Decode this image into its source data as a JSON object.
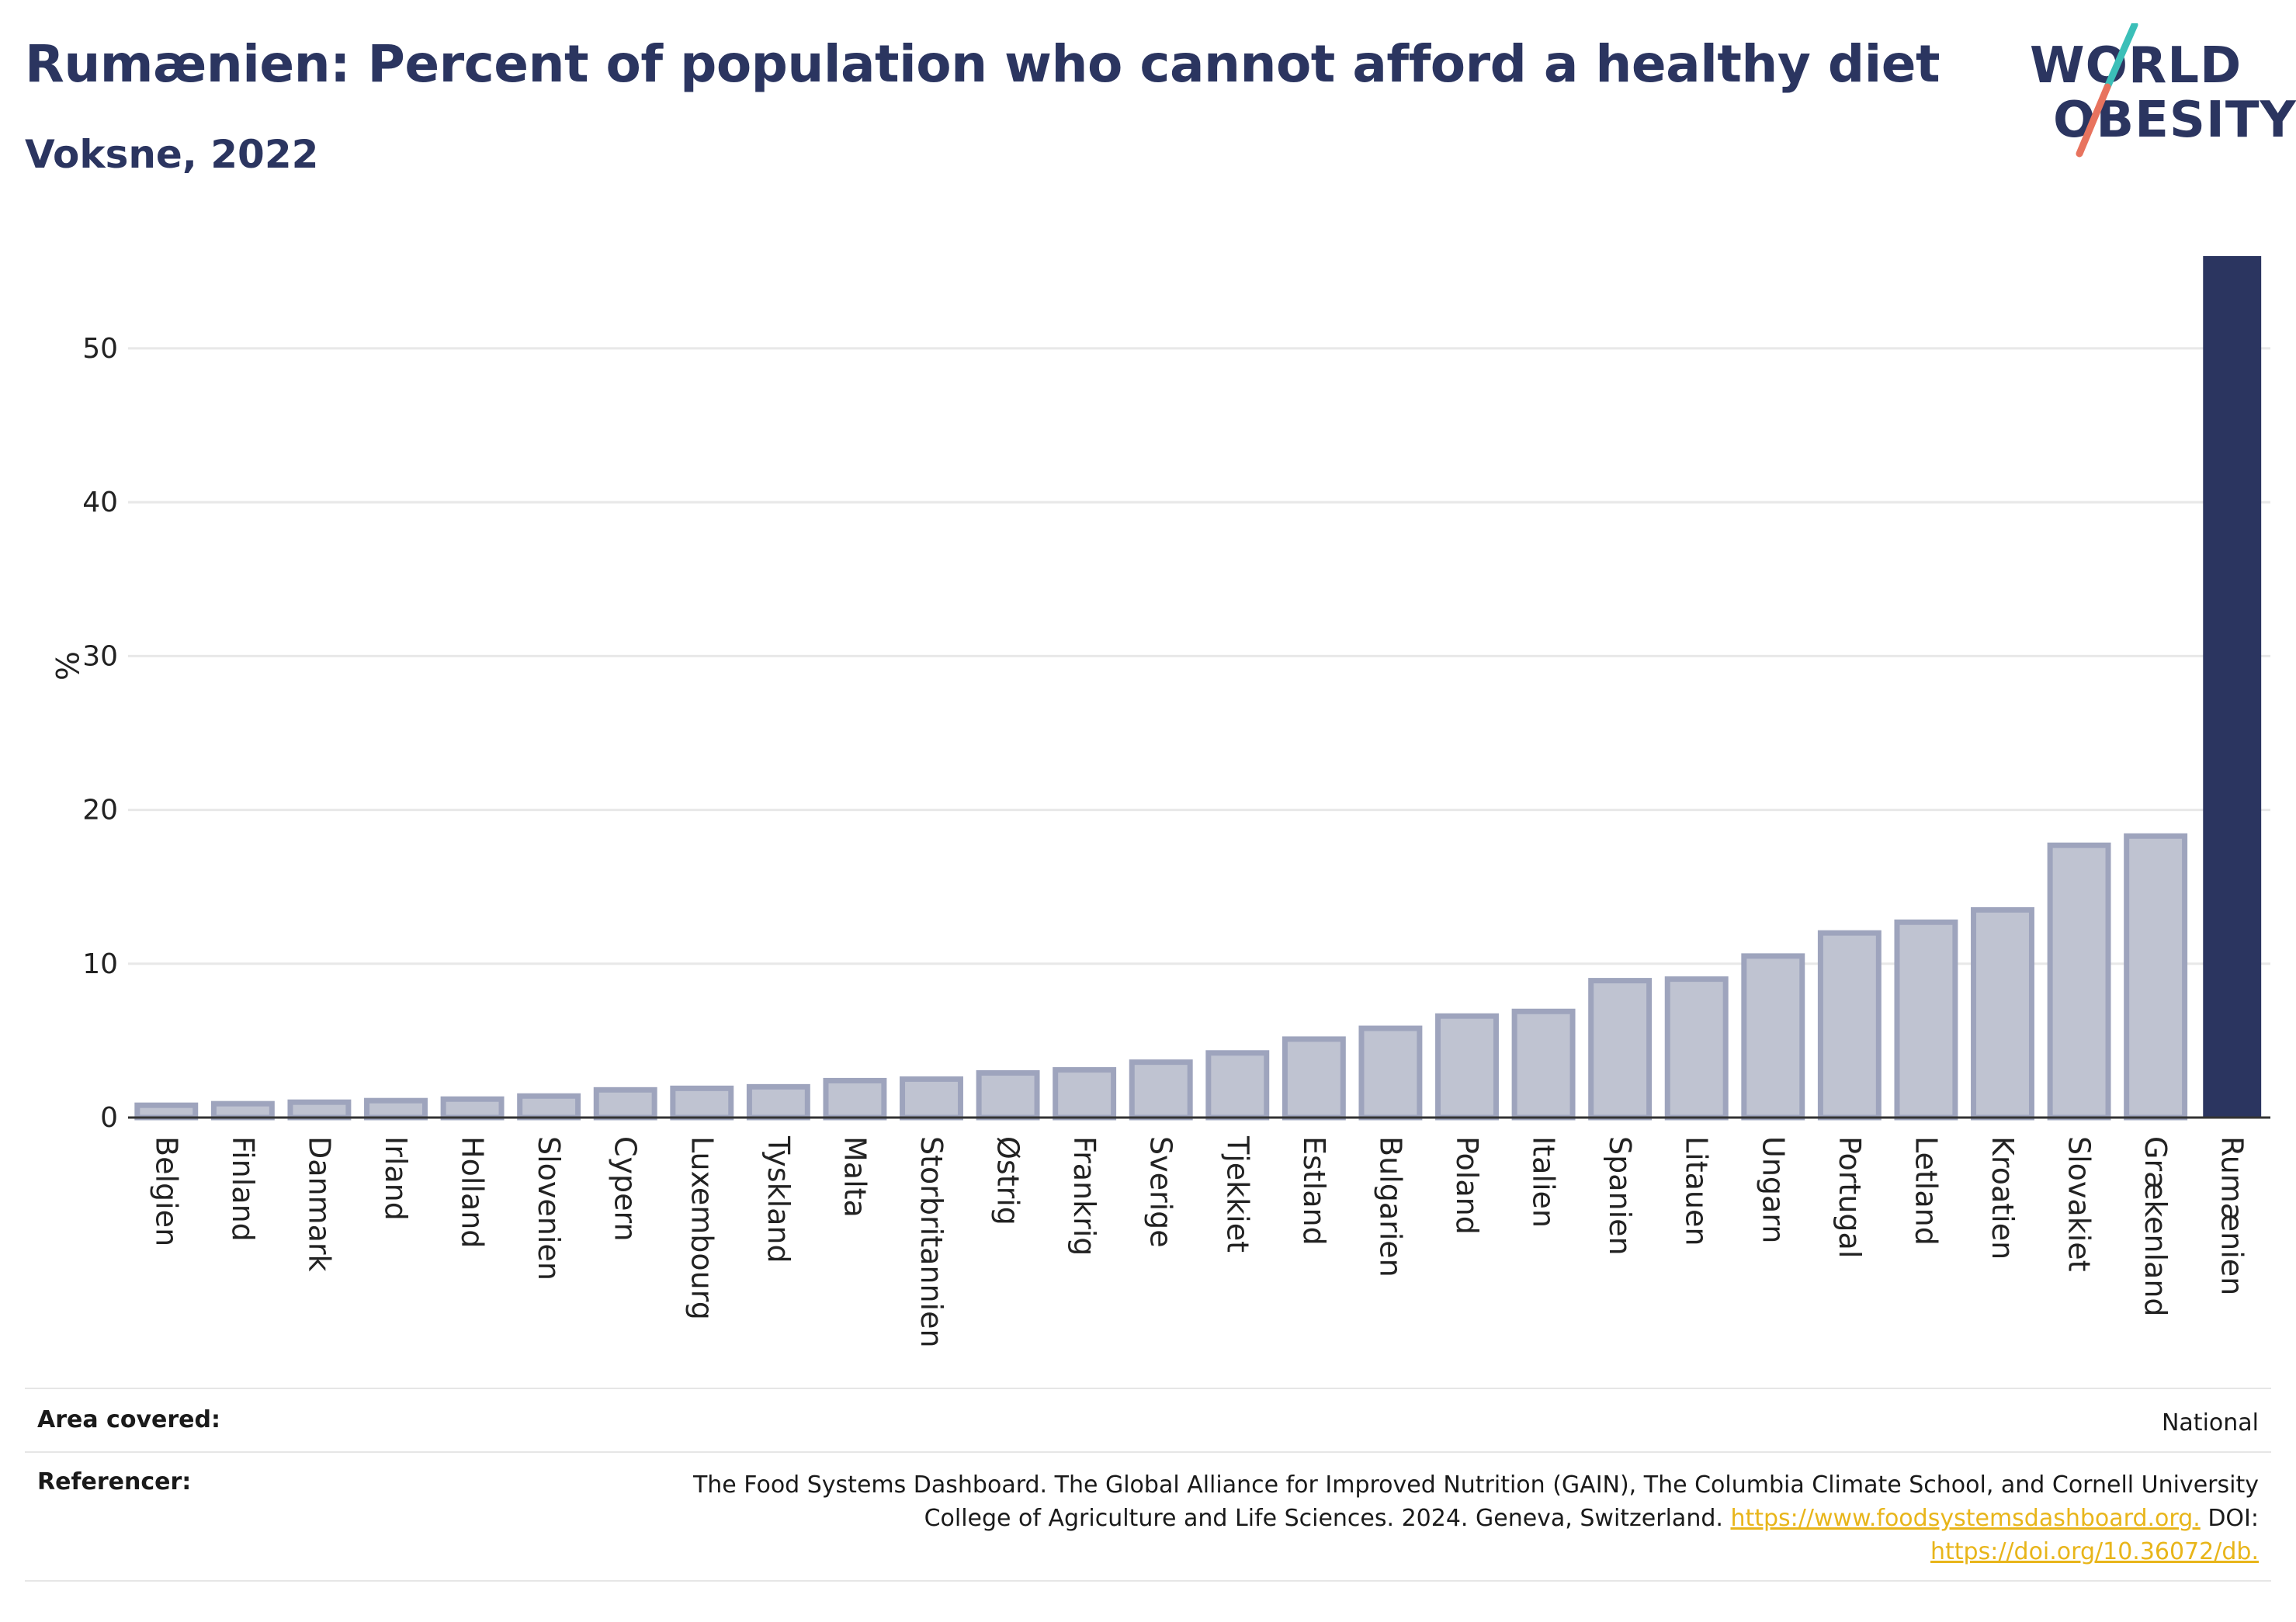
{
  "header": {
    "title": "Rumænien: Percent of population who cannot afford a healthy diet",
    "subtitle": "Voksne, 2022"
  },
  "logo": {
    "line1": "WORLD",
    "line2": "OBESITY",
    "colors": {
      "text": "#2b3560",
      "slash_top": "#3bbfb8",
      "slash_bottom": "#e8735e"
    }
  },
  "colors": {
    "highlight_bar": "#2b3560",
    "other_bar_fill": "#bfc3d1",
    "other_bar_stroke": "#9ea4bd",
    "gridline": "#e8e8e8",
    "link": "#e8b51a"
  },
  "chart_data": {
    "type": "bar",
    "categories": [
      "Belgien",
      "Finland",
      "Danmark",
      "Irland",
      "Holland",
      "Slovenien",
      "Cypern",
      "Luxembourg",
      "Tyskland",
      "Malta",
      "Storbritannien",
      "Østrig",
      "Frankrig",
      "Sverige",
      "Tjekkiet",
      "Estland",
      "Bulgarien",
      "Poland",
      "Italien",
      "Spanien",
      "Litauen",
      "Ungarn",
      "Portugal",
      "Letland",
      "Kroatien",
      "Slovakiet",
      "Grækenland",
      "Rumænien"
    ],
    "values": [
      0.8,
      0.9,
      1.0,
      1.1,
      1.2,
      1.4,
      1.8,
      1.9,
      2.0,
      2.4,
      2.5,
      2.9,
      3.1,
      3.6,
      4.2,
      5.1,
      5.8,
      6.6,
      6.9,
      8.9,
      9.0,
      10.5,
      12.0,
      12.7,
      13.5,
      17.7,
      18.3,
      56.0
    ],
    "highlight": "Rumænien",
    "ylabel": "%",
    "xlabel": "",
    "yticks": [
      0,
      10,
      20,
      30,
      40,
      50
    ],
    "ylim": [
      0,
      56
    ],
    "grid": true
  },
  "footer": {
    "area_label": "Area covered:",
    "area_value": "National",
    "ref_label": "Referencer:",
    "ref_line1": "The Food Systems Dashboard. The Global Alliance for Improved Nutrition (GAIN), The Columbia Climate School, and Cornell University",
    "ref_line2_text": "College of Agriculture and Life Sciences. 2024. Geneva, Switzerland.",
    "ref_link1": "https://www.foodsystemsdashboard.org.",
    "ref_doi_label": "DOI:",
    "ref_link2": "https://doi.org/10.36072/db."
  }
}
